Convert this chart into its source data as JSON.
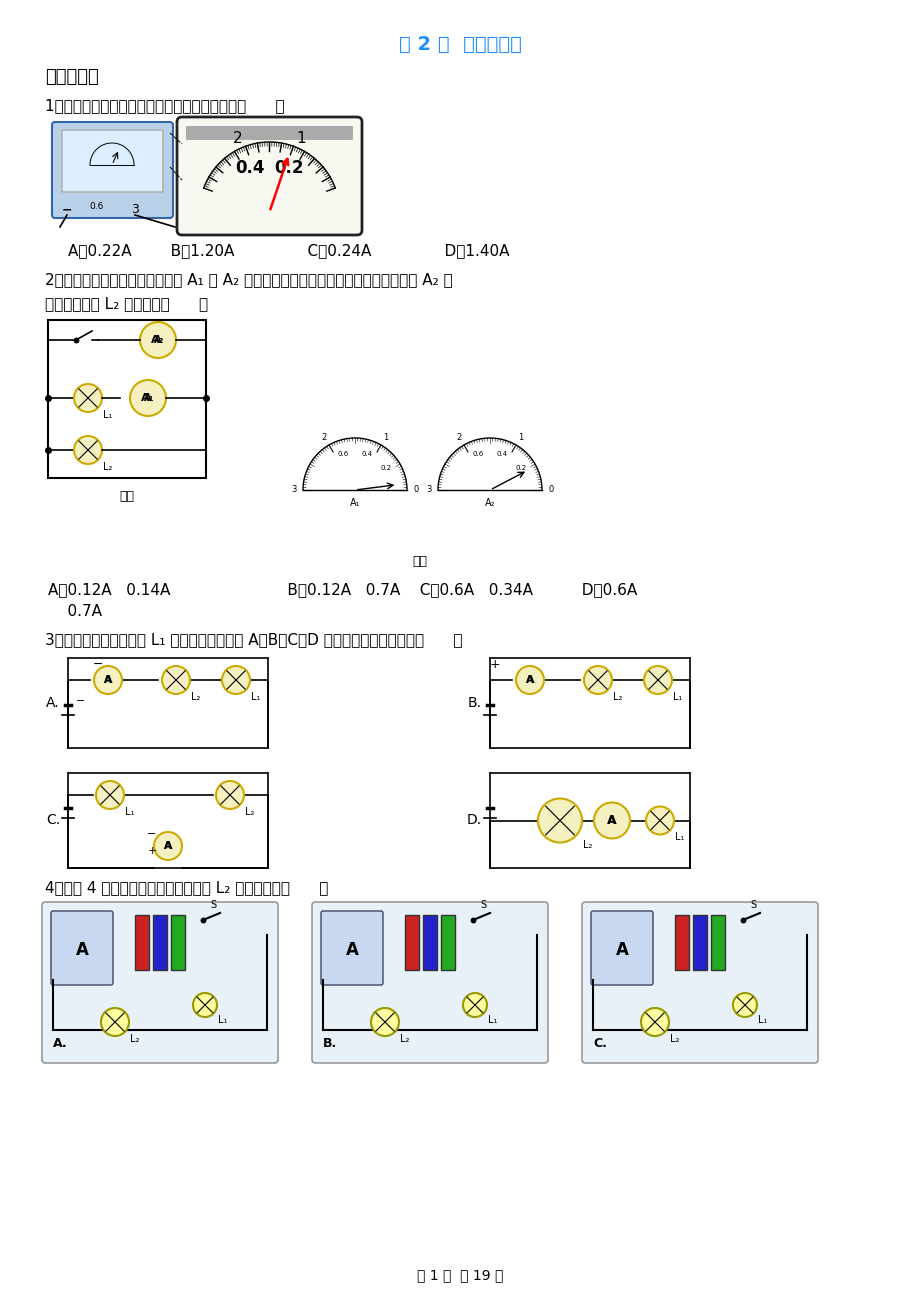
{
  "page_bg": "#ffffff",
  "title": "第 2 节  电流的测量",
  "title_color": "#1e90ff",
  "title_fontsize": 14,
  "section_header": "基础过关练",
  "section_header_fontsize": 13,
  "body_fontsize": 11,
  "q1_text": "1．测量时需要准确读数，图中电流表的示数是（      ）",
  "q1_options": "A．0.22A        B．1.20A               C．0.24A               D．1.40A",
  "q2_line1": "2．如图甲所示的电路中，电流表 A₁ 与 A₂ 的指针位置分别如图乙、丙所示，则电流表 A₂ 的",
  "q2_line2": "示数和通过灯 L₂ 的电流是（      ）",
  "q2_caption_left": "图甲",
  "q2_caption_right": "图乙",
  "q2_options_line1": "A．0.12A   0.14A                        B．0.12A   0.7A    C．0.6A   0.34A          D．0.6A",
  "q2_options_line2": "    0.7A",
  "q3_text": "3．要用电流表测量灯泡 L₁ 中的电流，如下面 A、B、C、D 电路中，接法正确的是（      ）",
  "q4_text": "4．下列 4 幅电路图中，电流表能测量 L₂ 的电流的是（      ）",
  "footer": "第 1 页  共 19 页",
  "footer_fontsize": 10
}
